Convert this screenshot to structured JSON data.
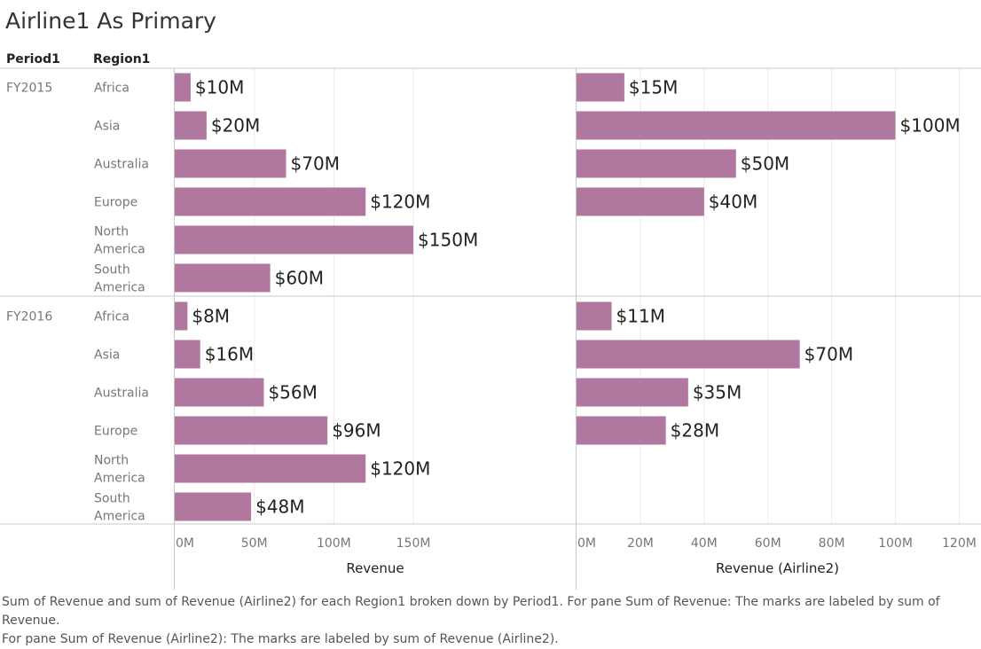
{
  "title": "Airline1 As Primary",
  "headers": {
    "period": "Period1",
    "region": "Region1"
  },
  "caption": "Sum of Revenue and sum of Revenue (Airline2) for each Region1 broken down by Period1.  For pane Sum of Revenue:  The marks are labeled by sum of Revenue.\nFor pane Sum of Revenue (Airline2):  The marks are labeled by sum of Revenue (Airline2).",
  "colors": {
    "bar": "#b0779f",
    "grid": "#ececec",
    "rule": "#c8c8c8",
    "text": "#222222",
    "muted": "#777777"
  },
  "chart_data": {
    "type": "bar",
    "orientation": "horizontal",
    "periods": [
      "FY2015",
      "FY2016"
    ],
    "regions": [
      "Africa",
      "Asia",
      "Australia",
      "Europe",
      "North America",
      "South America"
    ],
    "panes": [
      {
        "xlabel": "Revenue",
        "xlim": [
          0,
          252
        ],
        "ticks": [
          0,
          50,
          100,
          150
        ],
        "tick_labels": [
          "0M",
          "50M",
          "100M",
          "150M"
        ],
        "values": {
          "FY2015": [
            10,
            20,
            70,
            120,
            150,
            60
          ],
          "FY2016": [
            8,
            16,
            56,
            96,
            120,
            48
          ]
        },
        "labels": {
          "FY2015": [
            "$10M",
            "$20M",
            "$70M",
            "$120M",
            "$150M",
            "$60M"
          ],
          "FY2016": [
            "$8M",
            "$16M",
            "$56M",
            "$96M",
            "$120M",
            "$48M"
          ]
        }
      },
      {
        "xlabel": "Revenue (Airline2)",
        "xlim": [
          0,
          126
        ],
        "ticks": [
          0,
          20,
          40,
          60,
          80,
          100,
          120
        ],
        "tick_labels": [
          "0M",
          "20M",
          "40M",
          "60M",
          "80M",
          "100M",
          "120M"
        ],
        "values": {
          "FY2015": [
            15,
            100,
            50,
            40,
            null,
            null
          ],
          "FY2016": [
            11,
            70,
            35,
            28,
            null,
            null
          ]
        },
        "labels": {
          "FY2015": [
            "$15M",
            "$100M",
            "$50M",
            "$40M",
            null,
            null
          ],
          "FY2016": [
            "$11M",
            "$70M",
            "$35M",
            "$28M",
            null,
            null
          ]
        }
      }
    ]
  }
}
